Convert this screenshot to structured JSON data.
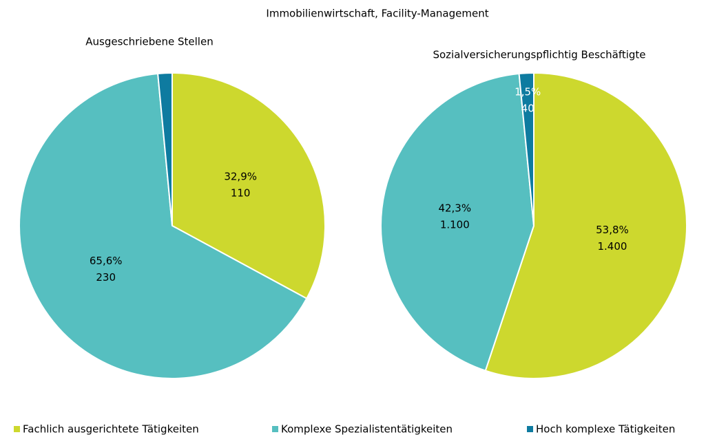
{
  "title": "Immobilienwirtschaft, Facility-Management",
  "chart_data": [
    {
      "type": "pie",
      "title": "Ausgeschriebene Stellen",
      "categories": [
        "Fachlich ausgerichtete Tätigkeiten",
        "Komplexe Spezialistentätigkeiten",
        "Hoch komplexe Tätigkeiten"
      ],
      "colors": [
        "#cdd82e",
        "#56bfc0",
        "#0e7ba0"
      ],
      "values": [
        32.9,
        65.6,
        1.5
      ],
      "value_labels": [
        "32,9%",
        "65,6%",
        null
      ],
      "counts": [
        110,
        230,
        null
      ],
      "count_labels": [
        "110",
        "230",
        null
      ]
    },
    {
      "type": "pie",
      "title": "Sozialversicherungspflichtig Beschäftigte",
      "categories": [
        "Fachlich ausgerichtete Tätigkeiten",
        "Komplexe Spezialistentätigkeiten",
        "Hoch komplexe Tätigkeiten"
      ],
      "colors": [
        "#cdd82e",
        "#56bfc0",
        "#0e7ba0"
      ],
      "values": [
        53.8,
        42.3,
        1.5
      ],
      "value_labels": [
        "53,8%",
        "42,3%",
        "1,5%"
      ],
      "counts": [
        1400,
        1100,
        40
      ],
      "count_labels": [
        "1.400",
        "1.100",
        "40"
      ]
    }
  ]
}
